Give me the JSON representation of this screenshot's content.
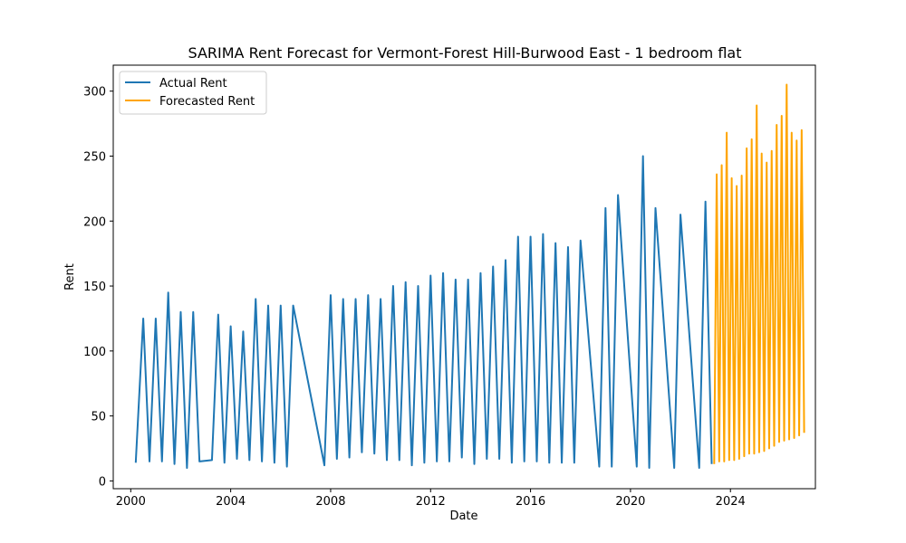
{
  "chart_data": {
    "type": "line",
    "title": "SARIMA Rent Forecast for Vermont-Forest Hill-Burwood East - 1 bedroom flat",
    "xlabel": "Date",
    "ylabel": "Rent",
    "xlim": [
      1999.3,
      2027.4
    ],
    "ylim": [
      -6,
      320
    ],
    "x_ticks": [
      2000,
      2004,
      2008,
      2012,
      2016,
      2020,
      2024
    ],
    "x_tick_labels": [
      "2000",
      "2004",
      "2008",
      "2012",
      "2016",
      "2020",
      "2024"
    ],
    "y_ticks": [
      0,
      50,
      100,
      150,
      200,
      250,
      300
    ],
    "y_tick_labels": [
      "0",
      "50",
      "100",
      "150",
      "200",
      "250",
      "300"
    ],
    "legend_position": "top-left",
    "grid": false,
    "series": [
      {
        "name": "Actual Rent",
        "color": "#1f77b4",
        "points": [
          [
            2000.2,
            14
          ],
          [
            2000.5,
            125
          ],
          [
            2000.75,
            15
          ],
          [
            2001.0,
            125
          ],
          [
            2001.25,
            15
          ],
          [
            2001.5,
            145
          ],
          [
            2001.75,
            13
          ],
          [
            2002.0,
            130
          ],
          [
            2002.25,
            10
          ],
          [
            2002.5,
            130
          ],
          [
            2002.75,
            15
          ],
          [
            2003.25,
            16
          ],
          [
            2003.5,
            128
          ],
          [
            2003.75,
            14
          ],
          [
            2004.0,
            119
          ],
          [
            2004.25,
            17
          ],
          [
            2004.5,
            115
          ],
          [
            2004.75,
            16
          ],
          [
            2005.0,
            140
          ],
          [
            2005.25,
            15
          ],
          [
            2005.5,
            135
          ],
          [
            2005.75,
            14
          ],
          [
            2006.0,
            135
          ],
          [
            2006.25,
            11
          ],
          [
            2006.5,
            135
          ],
          [
            2007.75,
            12
          ],
          [
            2008.0,
            143
          ],
          [
            2008.25,
            17
          ],
          [
            2008.5,
            140
          ],
          [
            2008.75,
            18
          ],
          [
            2009.0,
            140
          ],
          [
            2009.25,
            22
          ],
          [
            2009.5,
            143
          ],
          [
            2009.75,
            21
          ],
          [
            2010.0,
            140
          ],
          [
            2010.25,
            16
          ],
          [
            2010.5,
            150
          ],
          [
            2010.75,
            16
          ],
          [
            2011.0,
            153
          ],
          [
            2011.25,
            12
          ],
          [
            2011.5,
            150
          ],
          [
            2011.75,
            14
          ],
          [
            2012.0,
            158
          ],
          [
            2012.25,
            15
          ],
          [
            2012.5,
            160
          ],
          [
            2012.75,
            15
          ],
          [
            2013.0,
            155
          ],
          [
            2013.25,
            18
          ],
          [
            2013.5,
            155
          ],
          [
            2013.75,
            13
          ],
          [
            2014.0,
            160
          ],
          [
            2014.25,
            17
          ],
          [
            2014.5,
            165
          ],
          [
            2014.75,
            17
          ],
          [
            2015.0,
            170
          ],
          [
            2015.25,
            14
          ],
          [
            2015.5,
            188
          ],
          [
            2015.75,
            15
          ],
          [
            2016.0,
            188
          ],
          [
            2016.25,
            15
          ],
          [
            2016.5,
            190
          ],
          [
            2016.75,
            14
          ],
          [
            2017.0,
            183
          ],
          [
            2017.25,
            14
          ],
          [
            2017.5,
            180
          ],
          [
            2017.75,
            14
          ],
          [
            2018.0,
            185
          ],
          [
            2018.75,
            11
          ],
          [
            2019.0,
            210
          ],
          [
            2019.25,
            11
          ],
          [
            2019.5,
            220
          ],
          [
            2020.25,
            11
          ],
          [
            2020.5,
            250
          ],
          [
            2020.75,
            10
          ],
          [
            2021.0,
            210
          ],
          [
            2021.75,
            10
          ],
          [
            2022.0,
            205
          ],
          [
            2022.75,
            10
          ],
          [
            2023.0,
            215
          ],
          [
            2023.25,
            13
          ]
        ]
      },
      {
        "name": "Forecasted Rent",
        "color": "#ffa500",
        "points": [
          [
            2023.35,
            13
          ],
          [
            2023.45,
            236
          ],
          [
            2023.55,
            15
          ],
          [
            2023.65,
            243
          ],
          [
            2023.75,
            15
          ],
          [
            2023.85,
            268
          ],
          [
            2023.95,
            16
          ],
          [
            2024.05,
            233
          ],
          [
            2024.15,
            16
          ],
          [
            2024.25,
            227
          ],
          [
            2024.35,
            17
          ],
          [
            2024.45,
            235
          ],
          [
            2024.55,
            19
          ],
          [
            2024.65,
            256
          ],
          [
            2024.75,
            21
          ],
          [
            2024.85,
            263
          ],
          [
            2024.95,
            21
          ],
          [
            2025.05,
            289
          ],
          [
            2025.15,
            22
          ],
          [
            2025.25,
            252
          ],
          [
            2025.35,
            23
          ],
          [
            2025.45,
            245
          ],
          [
            2025.55,
            25
          ],
          [
            2025.65,
            254
          ],
          [
            2025.75,
            27
          ],
          [
            2025.85,
            274
          ],
          [
            2025.95,
            30
          ],
          [
            2026.05,
            281
          ],
          [
            2026.15,
            31
          ],
          [
            2026.25,
            305
          ],
          [
            2026.35,
            32
          ],
          [
            2026.45,
            268
          ],
          [
            2026.55,
            33
          ],
          [
            2026.65,
            262
          ],
          [
            2026.75,
            35
          ],
          [
            2026.85,
            270
          ],
          [
            2026.95,
            37
          ]
        ]
      }
    ]
  }
}
